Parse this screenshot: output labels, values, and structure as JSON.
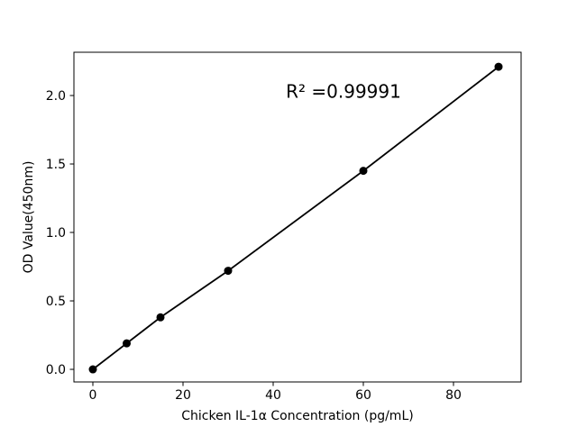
{
  "figure": {
    "background": "#ffffff",
    "foreground": "#000000"
  },
  "chart_data": {
    "type": "line",
    "title": "",
    "xlabel": "Chicken IL-1α Concentration (pg/mL)",
    "ylabel": "OD Value(450nm)",
    "x": [
      0,
      7.5,
      15,
      30,
      60,
      90
    ],
    "y": [
      0.0,
      0.19,
      0.38,
      0.72,
      1.45,
      2.21
    ],
    "xticks": [
      0,
      20,
      40,
      60,
      80
    ],
    "yticks": [
      0.0,
      0.5,
      1.0,
      1.5,
      2.0
    ],
    "xlim": [
      -4.2,
      95.0
    ],
    "ylim": [
      -0.092,
      2.316
    ],
    "grid": false,
    "legend": null,
    "line_color": "#000000",
    "marker_color": "#000000",
    "marker": "circle",
    "annotation": {
      "text": "R² =0.99991",
      "x": 55.6,
      "y": 2.03
    }
  }
}
